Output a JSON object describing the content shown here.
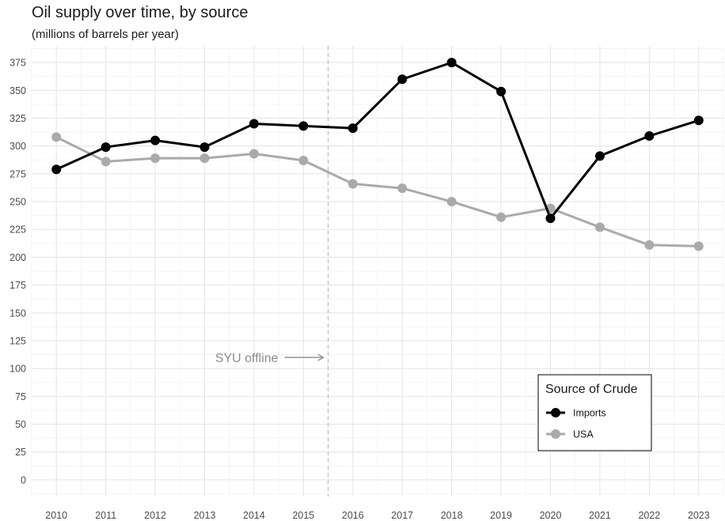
{
  "chart_data": {
    "type": "line",
    "title": "Oil supply over time, by source",
    "subtitle": "(millions of barrels per year)",
    "xlabel": "",
    "ylabel": "",
    "x": [
      2010,
      2011,
      2012,
      2013,
      2014,
      2015,
      2016,
      2017,
      2018,
      2019,
      2020,
      2021,
      2022,
      2023
    ],
    "xlim": [
      2009.5,
      2023.5
    ],
    "ylim": [
      -15,
      390
    ],
    "y_ticks": [
      0,
      25,
      50,
      75,
      100,
      125,
      150,
      175,
      200,
      225,
      250,
      275,
      300,
      325,
      350,
      375
    ],
    "grid": true,
    "series": [
      {
        "name": "Imports",
        "color": "#000000",
        "values": [
          279,
          299,
          305,
          299,
          320,
          318,
          316,
          360,
          375,
          349,
          235,
          291,
          309,
          323
        ]
      },
      {
        "name": "USA",
        "color": "#aaaaaa",
        "values": [
          308,
          286,
          289,
          289,
          293,
          287,
          266,
          262,
          250,
          236,
          244,
          227,
          211,
          210
        ]
      }
    ],
    "legend": {
      "title": "Source of Crude",
      "position": "bottom-right"
    },
    "annotation": {
      "text": "SYU offline",
      "vline_x": 2015.5,
      "text_y": 110
    }
  }
}
